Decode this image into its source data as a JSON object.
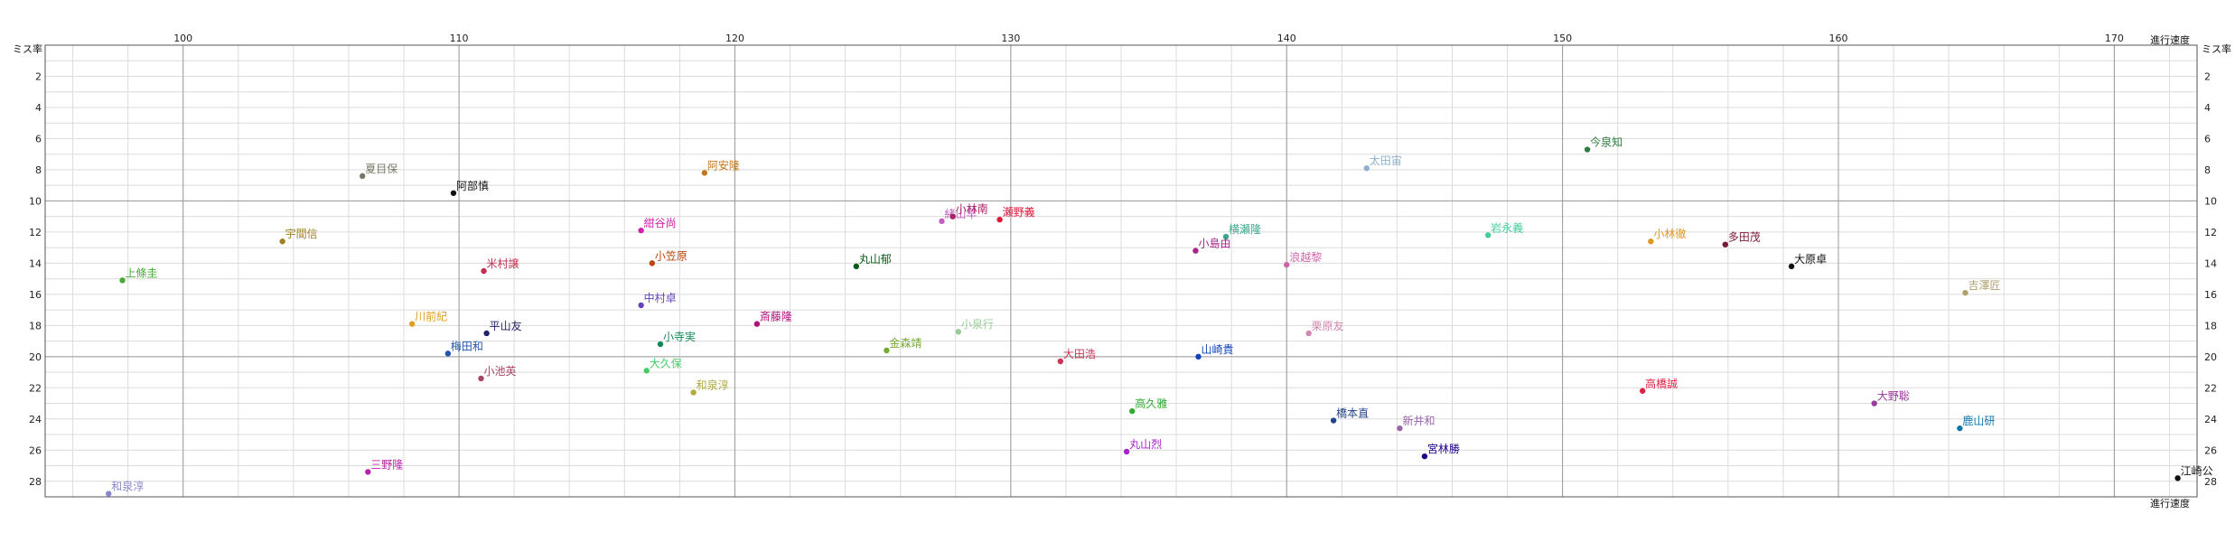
{
  "chart_data": {
    "type": "scatter",
    "xlabel": "進行速度",
    "ylabel": "ミス率",
    "xlim": [
      95,
      173
    ],
    "ylim": [
      0,
      29
    ],
    "y_inverted": true,
    "x_ticks": [
      100,
      110,
      120,
      130,
      140,
      150,
      160,
      170
    ],
    "y_ticks": [
      2,
      4,
      6,
      8,
      10,
      12,
      14,
      16,
      18,
      20,
      22,
      24,
      26,
      28
    ],
    "grid": true,
    "points": [
      {
        "label": "今泉知",
        "x": 150.9,
        "y": 6.7,
        "color": "#2e7d3e"
      },
      {
        "label": "太田宙",
        "x": 142.9,
        "y": 7.9,
        "color": "#8fb0cc"
      },
      {
        "label": "夏目保",
        "x": 106.5,
        "y": 8.4,
        "color": "#777766"
      },
      {
        "label": "阿安隆",
        "x": 118.9,
        "y": 8.2,
        "color": "#c07820"
      },
      {
        "label": "阿部慎",
        "x": 109.8,
        "y": 9.5,
        "color": "#111111"
      },
      {
        "label": "緒山早",
        "x": 127.5,
        "y": 11.3,
        "color": "#c060c0"
      },
      {
        "label": "小林南",
        "x": 127.9,
        "y": 11.0,
        "color": "#aa2266"
      },
      {
        "label": "瀬野義",
        "x": 129.6,
        "y": 11.2,
        "color": "#e0183c"
      },
      {
        "label": "紺谷尚",
        "x": 116.6,
        "y": 11.9,
        "color": "#cc22aa"
      },
      {
        "label": "横瀬隆",
        "x": 137.8,
        "y": 12.3,
        "color": "#3ba88c"
      },
      {
        "label": "岩永義",
        "x": 147.3,
        "y": 12.2,
        "color": "#44cc99"
      },
      {
        "label": "小林徹",
        "x": 153.2,
        "y": 12.6,
        "color": "#dd9922"
      },
      {
        "label": "多田茂",
        "x": 155.9,
        "y": 12.8,
        "color": "#7a1a3a"
      },
      {
        "label": "宇間信",
        "x": 103.6,
        "y": 12.6,
        "color": "#a08020"
      },
      {
        "label": "小島由",
        "x": 136.7,
        "y": 13.2,
        "color": "#aa2288"
      },
      {
        "label": "大原卓",
        "x": 158.3,
        "y": 14.2,
        "color": "#111111"
      },
      {
        "label": "浪越黎",
        "x": 140.0,
        "y": 14.1,
        "color": "#cc66aa"
      },
      {
        "label": "丸山郁",
        "x": 124.4,
        "y": 14.2,
        "color": "#0a5a1a"
      },
      {
        "label": "小笠原",
        "x": 117.0,
        "y": 14.0,
        "color": "#bb4411"
      },
      {
        "label": "米村譲",
        "x": 110.9,
        "y": 14.5,
        "color": "#c03050"
      },
      {
        "label": "上條圭",
        "x": 97.8,
        "y": 15.1,
        "color": "#44aa33"
      },
      {
        "label": "吉澤匠",
        "x": 164.6,
        "y": 15.9,
        "color": "#b0a070"
      },
      {
        "label": "中村卓",
        "x": 116.6,
        "y": 16.7,
        "color": "#6644bb"
      },
      {
        "label": "川前紀",
        "x": 108.3,
        "y": 17.9,
        "color": "#e0a020"
      },
      {
        "label": "斎藤隆",
        "x": 120.8,
        "y": 17.9,
        "color": "#b0107a"
      },
      {
        "label": "小泉行",
        "x": 128.1,
        "y": 18.4,
        "color": "#99cc99"
      },
      {
        "label": "栗原友",
        "x": 140.8,
        "y": 18.5,
        "color": "#d088b0"
      },
      {
        "label": "平山友",
        "x": 111.0,
        "y": 18.5,
        "color": "#222266"
      },
      {
        "label": "小寺実",
        "x": 117.3,
        "y": 19.2,
        "color": "#118855"
      },
      {
        "label": "梅田和",
        "x": 109.6,
        "y": 19.8,
        "color": "#2255aa"
      },
      {
        "label": "金森靖",
        "x": 125.5,
        "y": 19.6,
        "color": "#77aa33"
      },
      {
        "label": "山崎貴",
        "x": 136.8,
        "y": 20.0,
        "color": "#1144bb"
      },
      {
        "label": "大田浩",
        "x": 131.8,
        "y": 20.3,
        "color": "#cc3355"
      },
      {
        "label": "大久保",
        "x": 116.8,
        "y": 20.9,
        "color": "#44cc66"
      },
      {
        "label": "小池英",
        "x": 110.8,
        "y": 21.4,
        "color": "#aa4466"
      },
      {
        "label": "和泉淳",
        "x": 118.5,
        "y": 22.3,
        "color": "#b0aa44"
      },
      {
        "label": "高橋誠",
        "x": 152.9,
        "y": 22.2,
        "color": "#dd2244"
      },
      {
        "label": "大野聡",
        "x": 161.3,
        "y": 23.0,
        "color": "#9a3a9a"
      },
      {
        "label": "高久雅",
        "x": 134.4,
        "y": 23.5,
        "color": "#33aa33"
      },
      {
        "label": "橋本直",
        "x": 141.7,
        "y": 24.1,
        "color": "#224488"
      },
      {
        "label": "新井和",
        "x": 144.1,
        "y": 24.6,
        "color": "#9966aa"
      },
      {
        "label": "鹿山研",
        "x": 164.4,
        "y": 24.6,
        "color": "#1177aa"
      },
      {
        "label": "丸山烈",
        "x": 134.2,
        "y": 26.1,
        "color": "#aa22cc"
      },
      {
        "label": "宮林勝",
        "x": 145.0,
        "y": 26.4,
        "color": "#220088"
      },
      {
        "label": "三野隆",
        "x": 106.7,
        "y": 27.4,
        "color": "#bb22aa"
      },
      {
        "label": "江崎公",
        "x": 172.3,
        "y": 27.8,
        "color": "#111111"
      },
      {
        "label": "和泉淳",
        "x": 97.3,
        "y": 28.8,
        "color": "#8888cc"
      }
    ]
  }
}
